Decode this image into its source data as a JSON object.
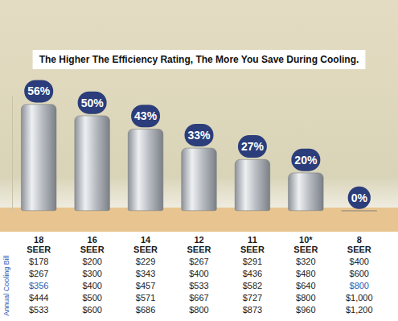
{
  "chart_data": {
    "type": "bar",
    "title": "The Higher The Efficiency Rating, The More You Save During Cooling.",
    "categories": [
      "18 SEER",
      "16 SEER",
      "14 SEER",
      "12 SEER",
      "11 SEER",
      "10* SEER",
      "8 SEER"
    ],
    "values": [
      56,
      50,
      43,
      33,
      27,
      20,
      0
    ],
    "value_labels": [
      "56%",
      "50%",
      "43%",
      "33%",
      "27%",
      "20%",
      "0%"
    ],
    "color": "#b8bcc2",
    "ylim": [
      0,
      60
    ],
    "data_labels": true,
    "tick_labels": "x"
  },
  "table": {
    "label": "Annual Cooling Bill",
    "rows": [
      [
        "$178",
        "$200",
        "$229",
        "$267",
        "$291",
        "$320",
        "$400"
      ],
      [
        "$267",
        "$300",
        "$343",
        "$400",
        "$436",
        "$480",
        "$600"
      ],
      [
        {
          "text": "$356",
          "color": "#2a5db0"
        },
        "$400",
        "$457",
        "$533",
        "$582",
        "$640",
        {
          "text": "$800",
          "color": "#2a5db0"
        }
      ],
      [
        "$444",
        "$500",
        "$571",
        "$667",
        "$727",
        "$800",
        "$1,000"
      ],
      [
        "$533",
        "$600",
        "$686",
        "$800",
        "$873",
        "$960",
        "$1,200"
      ]
    ]
  }
}
